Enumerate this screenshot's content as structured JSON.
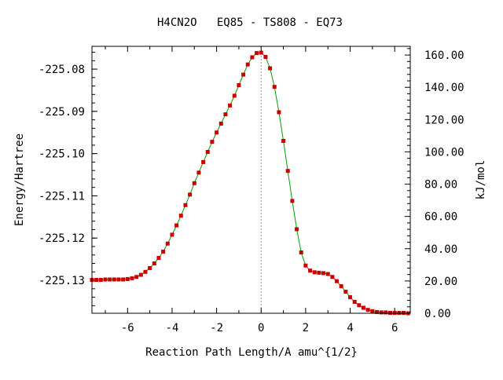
{
  "chart_data": {
    "type": "line",
    "title": "H4CN2O   EQ85 - TS808 - EQ73",
    "xlabel": "Reaction Path Length/A amu^{1/2}",
    "ylabel": "Energy/Hartree",
    "y2label": "kJ/mol",
    "xlim": [
      -7.6,
      6.7
    ],
    "ylim": [
      -225.1378,
      -225.0746
    ],
    "y2lim": [
      0,
      165.4
    ],
    "x_ticks": [
      -6,
      -4,
      -2,
      0,
      2,
      4,
      6
    ],
    "y_ticks": [
      -225.13,
      -225.12,
      -225.11,
      -225.1,
      -225.09,
      -225.08
    ],
    "y2_ticks": [
      0,
      20,
      40,
      60,
      80,
      100,
      120,
      140,
      160
    ],
    "x_tick_labels": [
      "-6",
      "-4",
      "-2",
      "0",
      "2",
      "4",
      "6"
    ],
    "y_tick_labels": [
      "-225.13",
      "-225.12",
      "-225.11",
      "-225.10",
      "-225.09",
      "-225.08"
    ],
    "y2_tick_labels": [
      "0.00",
      "20.00",
      "40.00",
      "60.00",
      "80.00",
      "100.00",
      "120.00",
      "140.00",
      "160.00"
    ],
    "grid": false,
    "ts_marker_x": 0,
    "series": [
      {
        "line_color": "#00a000",
        "marker_color": "#cc0000",
        "x": [
          -7.6,
          -7.4,
          -7.2,
          -7.0,
          -6.8,
          -6.6,
          -6.4,
          -6.2,
          -6.0,
          -5.8,
          -5.6,
          -5.4,
          -5.2,
          -5.0,
          -4.8,
          -4.6,
          -4.4,
          -4.2,
          -4.0,
          -3.8,
          -3.6,
          -3.4,
          -3.2,
          -3.0,
          -2.8,
          -2.6,
          -2.4,
          -2.2,
          -2.0,
          -1.8,
          -1.6,
          -1.4,
          -1.2,
          -1.0,
          -0.8,
          -0.6,
          -0.4,
          -0.2,
          0.0,
          0.2,
          0.4,
          0.6,
          0.8,
          1.0,
          1.2,
          1.4,
          1.6,
          1.8,
          2.0,
          2.2,
          2.4,
          2.6,
          2.8,
          3.0,
          3.2,
          3.4,
          3.6,
          3.8,
          4.0,
          4.2,
          4.4,
          4.6,
          4.8,
          5.0,
          5.2,
          5.4,
          5.6,
          5.8,
          6.0,
          6.2,
          6.4,
          6.6
        ],
        "y": [
          -225.1299,
          -225.1299,
          -225.1299,
          -225.1298,
          -225.1298,
          -225.1298,
          -225.1298,
          -225.1298,
          -225.1297,
          -225.1295,
          -225.1292,
          -225.1287,
          -225.128,
          -225.1271,
          -225.126,
          -225.1247,
          -225.1232,
          -225.1213,
          -225.1192,
          -225.117,
          -225.1147,
          -225.1122,
          -225.1097,
          -225.107,
          -225.1045,
          -225.102,
          -225.0996,
          -225.0972,
          -225.095,
          -225.0929,
          -225.0907,
          -225.0886,
          -225.0863,
          -225.0838,
          -225.0813,
          -225.0789,
          -225.0772,
          -225.0762,
          -225.0761,
          -225.0771,
          -225.0798,
          -225.0842,
          -225.0902,
          -225.097,
          -225.1041,
          -225.1112,
          -225.1179,
          -225.1234,
          -225.1265,
          -225.1277,
          -225.1281,
          -225.1282,
          -225.1283,
          -225.1285,
          -225.1292,
          -225.1302,
          -225.1314,
          -225.1327,
          -225.134,
          -225.1351,
          -225.1359,
          -225.1365,
          -225.137,
          -225.1373,
          -225.1375,
          -225.1376,
          -225.1376,
          -225.1377,
          -225.1377,
          -225.1377,
          -225.1377,
          -225.1378
        ]
      }
    ]
  }
}
